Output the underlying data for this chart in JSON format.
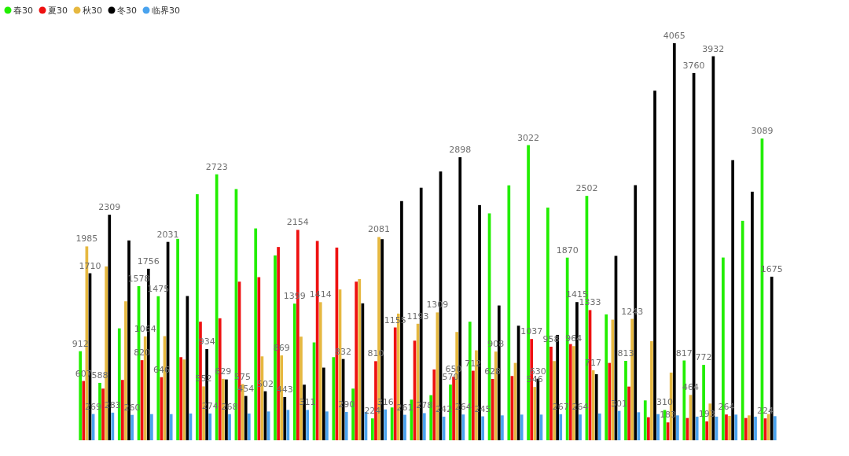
{
  "chart_data": {
    "type": "bar",
    "categories": [
      null,
      null,
      null,
      null,
      null,
      null,
      null,
      null,
      null,
      null,
      null,
      null,
      null,
      null,
      null,
      null,
      null,
      null,
      null,
      null,
      null,
      null,
      null,
      null,
      null,
      null,
      null,
      null,
      null,
      null,
      null,
      null,
      null,
      null,
      null,
      null
    ],
    "legend": "top left",
    "series": [
      {
        "name": "春30",
        "color": "#22ee00",
        "values": [
          912,
          588,
          1146,
          1578,
          1475,
          2062,
          2519,
          2723,
          2572,
          2169,
          1893,
          1399,
          1002,
          851,
          529,
          224,
          336,
          416,
          462,
          570,
          1214,
          2323,
          2610,
          3022,
          2382,
          1870,
          2502,
          1289,
          813,
          408,
          310,
          817,
          772,
          1871,
          2247,
          3089
        ],
        "value_labels": [
          "912",
          "588",
          null,
          "1578",
          "1475",
          null,
          null,
          "2723",
          null,
          null,
          null,
          "1399",
          null,
          null,
          null,
          "224",
          null,
          null,
          null,
          "570",
          null,
          null,
          null,
          "3022",
          null,
          "1870",
          "2502",
          null,
          "813",
          null,
          "310",
          "817",
          "772",
          null,
          null,
          "3089"
        ]
      },
      {
        "name": "夏30",
        "color": "#ee1111",
        "values": [
          607,
          529,
          618,
          820,
          646,
          851,
          1214,
          1249,
          1624,
          1670,
          1979,
          2154,
          2041,
          1973,
          1624,
          810,
          1155,
          1020,
          725,
          650,
          712,
          628,
          658,
          1037,
          958,
          985,
          1333,
          792,
          550,
          236,
          183,
          228,
          193,
          264,
          228,
          224
        ],
        "value_labels": [
          "607",
          null,
          null,
          "820",
          "646",
          null,
          null,
          null,
          null,
          null,
          null,
          "2154",
          null,
          null,
          null,
          "810",
          "1155",
          null,
          null,
          "650",
          "712",
          "628",
          null,
          "1037",
          "958",
          null,
          "1333",
          null,
          null,
          null,
          "183",
          null,
          "193",
          "264",
          null,
          "224"
        ]
      },
      {
        "name": "秋30",
        "color": "#e6b840",
        "values": [
          1985,
          1780,
          1423,
          1064,
          1066,
          827,
          552,
          629,
          575,
          859,
          869,
          1061,
          1414,
          1544,
          1651,
          2081,
          1297,
          1193,
          1309,
          1109,
          921,
          908,
          792,
          546,
          811,
          964,
          717,
          1235,
          1243,
          1015,
          693,
          464,
          376,
          250,
          255,
          268
        ],
        "value_labels": [
          "1985",
          null,
          null,
          "1064",
          null,
          null,
          "552",
          "629",
          "575",
          null,
          "869",
          null,
          "1414",
          null,
          null,
          "2081",
          null,
          "1193",
          "1309",
          null,
          null,
          "908",
          null,
          "546",
          null,
          "964",
          "717",
          null,
          "1243",
          null,
          null,
          "464",
          null,
          null,
          null,
          null
        ]
      },
      {
        "name": "冬30",
        "color": "#000000",
        "values": [
          1710,
          2309,
          2046,
          1756,
          2031,
          1477,
          934,
          623,
          454,
          502,
          443,
          569,
          744,
          832,
          1402,
          2059,
          2449,
          2586,
          2752,
          2898,
          2408,
          1380,
          1173,
          630,
          1079,
          1415,
          677,
          1888,
          2612,
          3579,
          4065,
          3760,
          3932,
          2868,
          2545,
          1675
        ],
        "value_labels": [
          "1710",
          "2309",
          null,
          "1756",
          "2031",
          null,
          "934",
          null,
          "454",
          "502",
          "443",
          null,
          null,
          "832",
          null,
          null,
          null,
          null,
          null,
          "2898",
          null,
          null,
          null,
          "630",
          null,
          "1415",
          null,
          null,
          null,
          null,
          "4065",
          "3760",
          "3932",
          null,
          null,
          "1675"
        ]
      },
      {
        "name": "临界30",
        "color": "#4aa3ee",
        "values": [
          269,
          283,
          260,
          268,
          268,
          274,
          274,
          268,
          274,
          295,
          311,
          311,
          295,
          290,
          290,
          316,
          261,
          278,
          242,
          264,
          245,
          255,
          263,
          263,
          267,
          264,
          274,
          301,
          287,
          268,
          255,
          242,
          242,
          263,
          242,
          247
        ],
        "value_labels": [
          "269",
          "283",
          "260",
          null,
          null,
          null,
          "274",
          "268",
          null,
          null,
          null,
          "311",
          null,
          "290",
          null,
          "316",
          "261",
          "278",
          "242",
          "264",
          "245",
          null,
          null,
          null,
          "267",
          "264",
          null,
          "301",
          null,
          null,
          null,
          null,
          null,
          null,
          null,
          null
        ]
      }
    ]
  }
}
